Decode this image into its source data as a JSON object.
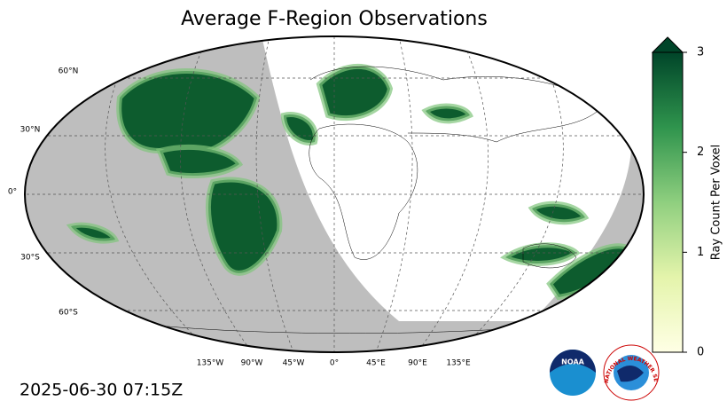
{
  "title": "Average F-Region Observations",
  "timestamp": "2025-06-30 07:15Z",
  "map": {
    "lat_labels": [
      "60°N",
      "30°N",
      "0°",
      "30°S",
      "60°S"
    ],
    "lon_labels": [
      "135°W",
      "90°W",
      "45°W",
      "0°",
      "45°E",
      "90°E",
      "135°E"
    ]
  },
  "colorbar": {
    "label": "Ray Count Per Voxel",
    "range": [
      0,
      3
    ],
    "ticks": [
      0,
      1,
      2,
      3
    ]
  },
  "logos": {
    "noaa": "NOAA",
    "nws": "NATIONAL WEATHER SERVICE"
  }
}
